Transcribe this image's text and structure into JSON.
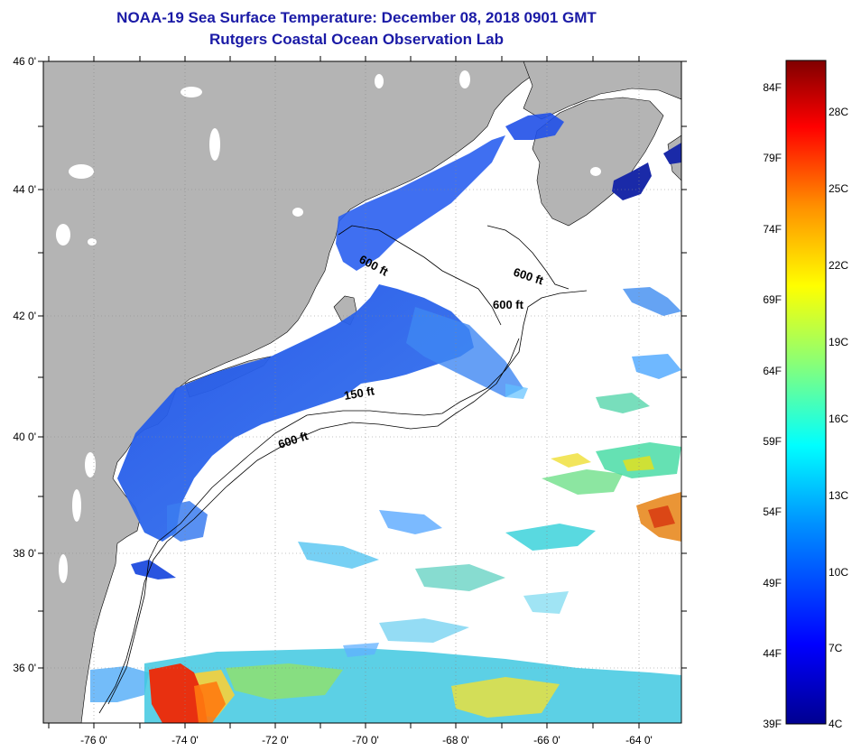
{
  "header": {
    "title": "NOAA-19 Sea Surface Temperature:  December 08, 2018 0901 GMT",
    "subtitle": "Rutgers Coastal Ocean Observation Lab"
  },
  "map": {
    "lat_labels": [
      "46 0'",
      "44 0'",
      "42 0'",
      "40 0'",
      "38 0'",
      "36 0'"
    ],
    "lon_labels": [
      "-76 0'",
      "-74 0'",
      "-72 0'",
      "-70 0'",
      "-68 0'",
      "-66 0'",
      "-64 0'"
    ],
    "contour_labels": [
      "600 ft",
      "600 ft",
      "600 ft",
      "150 ft",
      "600 ft"
    ],
    "colors": {
      "land": "#b4b4b4",
      "cloud": "#ffffff",
      "coast": "#000000"
    }
  },
  "colorbar": {
    "f_labels": [
      "84F",
      "79F",
      "74F",
      "69F",
      "64F",
      "59F",
      "54F",
      "49F",
      "44F",
      "39F"
    ],
    "c_labels": [
      "28C",
      "25C",
      "22C",
      "19C",
      "16C",
      "13C",
      "10C",
      "7C",
      "4C"
    ],
    "colormap": [
      "#000090",
      "#0000ff",
      "#0090ff",
      "#00ffff",
      "#90ff70",
      "#ffff00",
      "#ff9000",
      "#ff0000",
      "#800000"
    ]
  }
}
